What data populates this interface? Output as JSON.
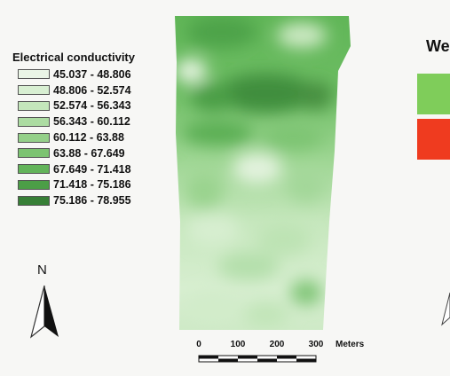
{
  "legend": {
    "title": "Electrical conductivity",
    "classes": [
      {
        "label": "45.037 - 48.806",
        "color": "#eaf5e6"
      },
      {
        "label": "48.806 - 52.574",
        "color": "#d8efd2"
      },
      {
        "label": "52.574 - 56.343",
        "color": "#c4e6bb"
      },
      {
        "label": "56.343 - 60.112",
        "color": "#acdca2"
      },
      {
        "label": "60.112 - 63.88",
        "color": "#94d089"
      },
      {
        "label": "63.88 - 67.649",
        "color": "#7cc371"
      },
      {
        "label": "67.649 - 71.418",
        "color": "#63b45a"
      },
      {
        "label": "71.418 - 75.186",
        "color": "#4c9e47"
      },
      {
        "label": "75.186 - 78.955",
        "color": "#377f36"
      }
    ]
  },
  "scale_bar": {
    "ticks": [
      "0",
      "100",
      "200",
      "300"
    ],
    "units": "Meters"
  },
  "north_arrow": {
    "label": "N"
  },
  "right_legend": {
    "title_fragment": "We",
    "swatches": [
      {
        "color": "#7fcd5a"
      },
      {
        "color": "#ef3b1f"
      }
    ]
  }
}
